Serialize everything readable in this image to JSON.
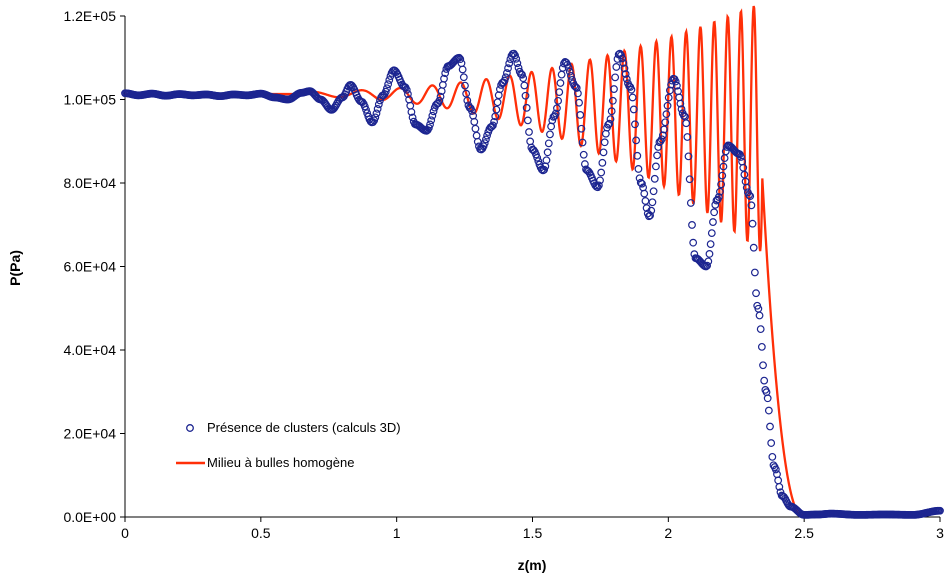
{
  "chart_data": {
    "type": "line",
    "title": "",
    "xlabel": "z(m)",
    "ylabel": "P(Pa)",
    "xlim": [
      0,
      3
    ],
    "ylim": [
      0,
      120000
    ],
    "grid": false,
    "legend_position": "bottom-left",
    "x_tick_labels": [
      "0",
      "0.5",
      "1",
      "1.5",
      "2",
      "2.5",
      "3"
    ],
    "y_tick_labels": [
      "0.0E+00",
      "2.0E+04",
      "4.0E+04",
      "6.0E+04",
      "8.0E+04",
      "1.0E+05",
      "1.2E+05"
    ],
    "series": [
      {
        "name": "Présence de clusters (calculs 3D)",
        "style": "markers",
        "color": "#1c2590",
        "x": [
          0,
          0.05,
          0.1,
          0.15,
          0.2,
          0.25,
          0.3,
          0.35,
          0.4,
          0.45,
          0.5,
          0.55,
          0.6,
          0.65,
          0.68,
          0.72,
          0.76,
          0.8,
          0.83,
          0.87,
          0.91,
          0.95,
          0.99,
          1.03,
          1.07,
          1.11,
          1.15,
          1.19,
          1.23,
          1.27,
          1.31,
          1.35,
          1.39,
          1.43,
          1.46,
          1.5,
          1.54,
          1.58,
          1.62,
          1.66,
          1.7,
          1.74,
          1.78,
          1.82,
          1.86,
          1.9,
          1.93,
          1.97,
          2.02,
          2.06,
          2.1,
          2.14,
          2.18,
          2.22,
          2.26,
          2.3,
          2.33,
          2.36,
          2.39,
          2.42,
          2.45,
          2.5,
          2.55,
          2.6,
          2.7,
          2.8,
          2.9,
          3.0
        ],
        "y": [
          101500,
          101000,
          101400,
          100900,
          101300,
          101000,
          101200,
          100800,
          101200,
          101000,
          101400,
          100500,
          100000,
          101600,
          102000,
          100000,
          97500,
          100500,
          103500,
          99500,
          94500,
          101000,
          107000,
          103000,
          94000,
          92500,
          99000,
          108000,
          110000,
          98000,
          88000,
          93500,
          104000,
          111000,
          106000,
          88000,
          83000,
          96000,
          109000,
          103000,
          83000,
          79000,
          94000,
          111000,
          103000,
          80000,
          72000,
          90000,
          105000,
          96000,
          62000,
          60000,
          76000,
          89000,
          87000,
          77000,
          50000,
          30000,
          12000,
          5000,
          2500,
          500,
          600,
          800,
          500,
          600,
          500,
          1500
        ]
      },
      {
        "name": "Milieu à bulles homogène",
        "style": "line",
        "color": "#ff2f08"
      }
    ]
  }
}
